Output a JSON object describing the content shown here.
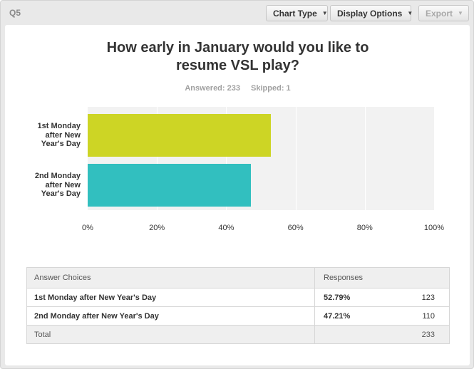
{
  "question_label": "Q5",
  "toolbar": {
    "chart_type": "Chart Type",
    "display_options": "Display Options",
    "export": "Export"
  },
  "title_line1": "How early in January would you like to",
  "title_line2": "resume VSL play?",
  "stats": {
    "answered": "Answered: 233",
    "skipped": "Skipped: 1"
  },
  "colors": {
    "bar1": "#cdd525",
    "bar2": "#32bfbf",
    "plot_bg": "#f2f2f2"
  },
  "chart_data": {
    "type": "bar",
    "orientation": "horizontal",
    "categories": [
      "1st Monday after New Year's Day",
      "2nd Monday after New Year's Day"
    ],
    "category_lines": [
      [
        "1st Monday",
        "after New",
        "Year's Day"
      ],
      [
        "2nd Monday",
        "after New",
        "Year's Day"
      ]
    ],
    "values": [
      52.79,
      47.21
    ],
    "xlim": [
      0,
      100
    ],
    "x_ticks": [
      "0%",
      "20%",
      "40%",
      "60%",
      "80%",
      "100%"
    ],
    "grid": true
  },
  "table": {
    "headers": [
      "Answer Choices",
      "Responses"
    ],
    "rows": [
      {
        "choice": "1st Monday after New Year's Day",
        "percent": "52.79%",
        "count": "123"
      },
      {
        "choice": "2nd Monday after New Year's Day",
        "percent": "47.21%",
        "count": "110"
      }
    ],
    "total_label": "Total",
    "total_count": "233"
  }
}
